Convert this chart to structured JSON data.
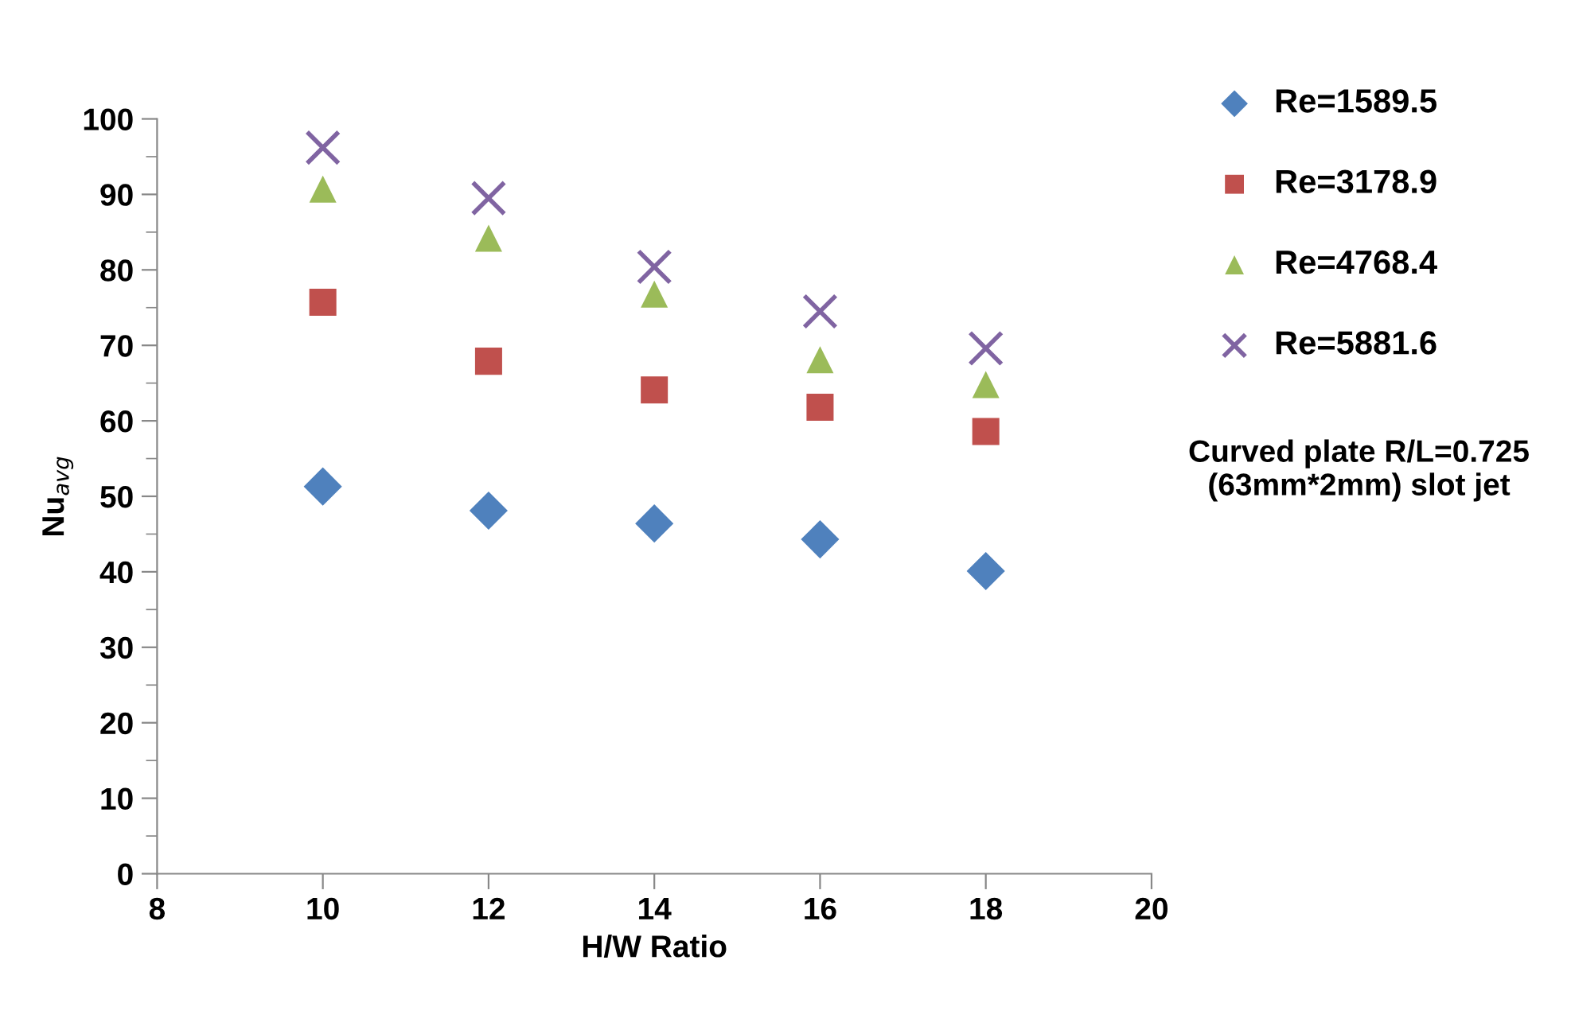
{
  "chart_data": {
    "type": "scatter",
    "xlabel": "H/W Ratio",
    "ylabel": "Nu$_{avg}$",
    "x": [
      10,
      12,
      14,
      16,
      18
    ],
    "series": [
      {
        "name": "Re=1589.5",
        "color": "#4f81bd",
        "marker": "diamond",
        "values": [
          51.3,
          48.1,
          46.4,
          44.3,
          40.1
        ]
      },
      {
        "name": "Re=3178.9",
        "color": "#c0504d",
        "marker": "square",
        "values": [
          75.7,
          67.9,
          64.1,
          61.8,
          58.6
        ]
      },
      {
        "name": "Re=4768.4",
        "color": "#9bbb59",
        "marker": "triangle",
        "values": [
          90.7,
          84.2,
          76.8,
          68.1,
          64.8
        ]
      },
      {
        "name": "Re=5881.6",
        "color": "#8064a2",
        "marker": "cross",
        "values": [
          96.2,
          89.5,
          80.4,
          74.5,
          69.6
        ]
      }
    ],
    "xlim": [
      8,
      20
    ],
    "xticks": [
      8,
      10,
      12,
      14,
      16,
      18,
      20
    ],
    "ylim": [
      0,
      100
    ],
    "yticks": [
      0,
      10,
      20,
      30,
      40,
      50,
      60,
      70,
      80,
      90,
      100
    ],
    "grid": false,
    "legend": "right",
    "annotations": [
      "Curved plate R/L=0.725\n(63mm*2mm) slot jet"
    ]
  }
}
